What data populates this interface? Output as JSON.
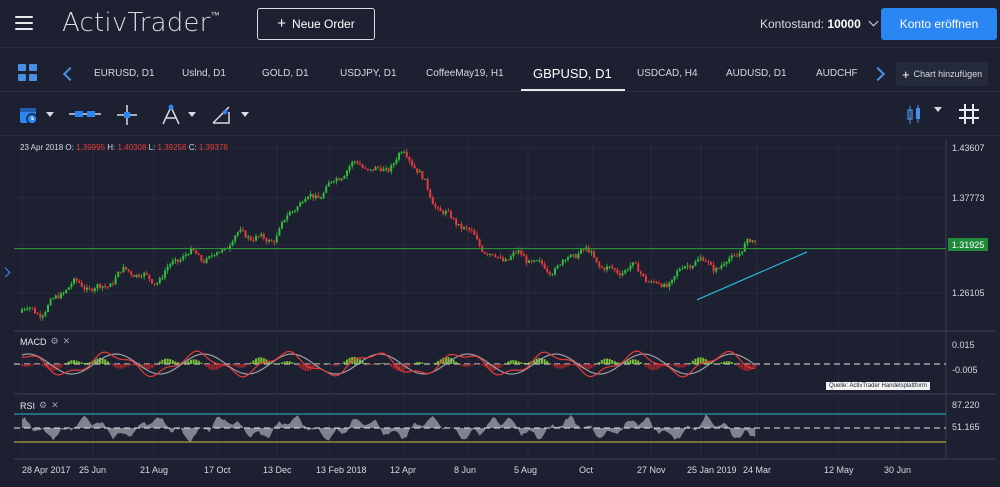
{
  "app": {
    "logo": "ActivTrader",
    "logo_tm": "™",
    "new_order_label": "Neue Order",
    "balance_label": "Kontostand:",
    "balance_value": "10000",
    "open_account_label": "Konto eröffnen",
    "accent_color": "#2a86f2"
  },
  "tabs": [
    {
      "label": "EURUSD, D1"
    },
    {
      "label": "Uslnd, D1"
    },
    {
      "label": "GOLD, D1"
    },
    {
      "label": "USDJPY, D1"
    },
    {
      "label": "CoffeeMay19, H1"
    },
    {
      "label": "GBPUSD, D1"
    },
    {
      "label": "USDCAD, H4"
    },
    {
      "label": "AUDUSD, D1"
    },
    {
      "label": "AUDCHF"
    }
  ],
  "active_tab": "GBPUSD, D1",
  "add_chart_label": "Chart hinzufügen",
  "toolbar": {
    "icons": [
      "calendar-icon",
      "line-tool-icon",
      "crosshair-icon",
      "fibonacci-icon",
      "pencil-icon",
      "candlestick-type-icon",
      "grid-icon"
    ]
  },
  "ohlc": {
    "date": "23 Apr 2018",
    "o_label": "O:",
    "o": "1.39995",
    "h_label": "H:",
    "h": "1.40308",
    "l_label": "L:",
    "l": "1.39258",
    "c_label": "C:",
    "c": "1.39378"
  },
  "indicators": {
    "macd_label": "MACD",
    "rsi_label": "RSI"
  },
  "source_note": "Quelle: ActivTrader Handelsplattform",
  "chart_data": {
    "type": "candlestick",
    "symbol": "GBPUSD",
    "timeframe": "D1",
    "price_axis": [
      "1.43607",
      "1.37773",
      "1.31925",
      "1.26105"
    ],
    "current_price": "1.31925",
    "x_ticks": [
      "28 Apr 2017",
      "25 Jun",
      "21 Aug",
      "17 Oct",
      "13 Dec",
      "13 Feb 2018",
      "12 Apr",
      "8 Jun",
      "5 Aug",
      "Oct",
      "27 Nov",
      "25 Jan 2019",
      "24 Mar",
      "12 May",
      "30 Jun"
    ],
    "close_path": [
      {
        "x": "28 Apr 2017",
        "y": 1.245
      },
      {
        "x": "25 Jun",
        "y": 1.28
      },
      {
        "x": "21 Aug",
        "y": 1.29
      },
      {
        "x": "17 Oct",
        "y": 1.32
      },
      {
        "x": "13 Dec",
        "y": 1.34
      },
      {
        "x": "13 Feb 2018",
        "y": 1.4
      },
      {
        "x": "12 Apr",
        "y": 1.425
      },
      {
        "x": "8 Jun",
        "y": 1.33
      },
      {
        "x": "5 Aug",
        "y": 1.3
      },
      {
        "x": "Oct",
        "y": 1.31
      },
      {
        "x": "27 Nov",
        "y": 1.28
      },
      {
        "x": "25 Jan 2019",
        "y": 1.3
      },
      {
        "x": "24 Mar",
        "y": 1.32
      }
    ],
    "horizontal_line": 1.31925,
    "trendline": {
      "from": {
        "x": "27 Nov",
        "y": 1.26
      },
      "to": {
        "x": "24 Mar",
        "y": 1.32
      }
    },
    "macd_axis": [
      "0.015",
      "-0.005"
    ],
    "rsi_axis": [
      "87.220",
      "51.165"
    ],
    "colors": {
      "bull": "#2fbf3a",
      "bear": "#e83a3a",
      "hline": "#2f9e3a",
      "trend": "#29b6d6",
      "rsi_upper": "#29b6d6",
      "rsi_lower": "#d8c03a"
    }
  }
}
